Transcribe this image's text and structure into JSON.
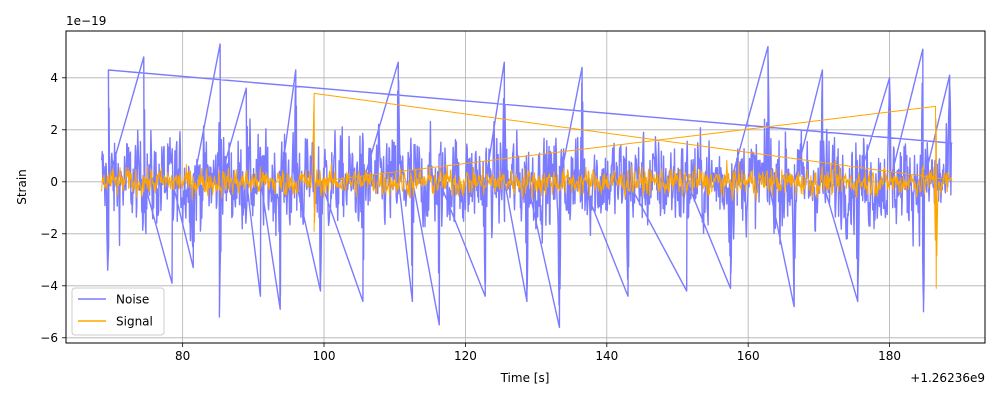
{
  "chart_data": {
    "type": "line",
    "title": "",
    "xlabel": "Time [s]",
    "ylabel": "Strain",
    "x_offset_label": "+1.26236e9",
    "y_scale_label": "1e−19",
    "xlim": [
      63.5,
      193.5
    ],
    "ylim": [
      -6.2,
      5.8
    ],
    "x_ticks": [
      80,
      100,
      120,
      140,
      160,
      180
    ],
    "y_ticks": [
      -6,
      -4,
      -2,
      0,
      2,
      4
    ],
    "x_tick_labels": [
      "80",
      "100",
      "120",
      "140",
      "160",
      "180"
    ],
    "y_tick_labels": [
      "−6",
      "−4",
      "−2",
      "0",
      "2",
      "4"
    ],
    "grid": true,
    "legend_position": "lower-left",
    "series": [
      {
        "name": "Noise",
        "color": "#7b7bff",
        "x_range": [
          68.5,
          188.8
        ],
        "typical_amplitude": 2.5,
        "peaks": [
          {
            "x": 69.5,
            "y": 4.3
          },
          {
            "x": 69.4,
            "y": -3.4
          },
          {
            "x": 74.5,
            "y": 4.8
          },
          {
            "x": 78.5,
            "y": -3.9
          },
          {
            "x": 81.5,
            "y": -3.3
          },
          {
            "x": 85.3,
            "y": 5.3
          },
          {
            "x": 85.2,
            "y": -5.2
          },
          {
            "x": 89.0,
            "y": 3.6
          },
          {
            "x": 91.0,
            "y": -4.4
          },
          {
            "x": 93.8,
            "y": -4.9
          },
          {
            "x": 96.0,
            "y": 4.3
          },
          {
            "x": 99.5,
            "y": -4.2
          },
          {
            "x": 105.5,
            "y": -4.6
          },
          {
            "x": 110.5,
            "y": 4.6
          },
          {
            "x": 112.5,
            "y": -4.6
          },
          {
            "x": 116.3,
            "y": -5.5
          },
          {
            "x": 122.8,
            "y": -4.4
          },
          {
            "x": 125.5,
            "y": 4.6
          },
          {
            "x": 128.7,
            "y": -4.6
          },
          {
            "x": 133.3,
            "y": -5.6
          },
          {
            "x": 136.5,
            "y": 4.4
          },
          {
            "x": 143.0,
            "y": -4.4
          },
          {
            "x": 151.3,
            "y": -4.2
          },
          {
            "x": 157.5,
            "y": -4.1
          },
          {
            "x": 162.8,
            "y": 5.2
          },
          {
            "x": 166.5,
            "y": -4.8
          },
          {
            "x": 170.5,
            "y": 4.3
          },
          {
            "x": 175.5,
            "y": -4.6
          },
          {
            "x": 180.0,
            "y": 4.0
          },
          {
            "x": 184.7,
            "y": 5.1
          },
          {
            "x": 184.8,
            "y": -5.0
          },
          {
            "x": 188.5,
            "y": 4.1
          }
        ]
      },
      {
        "name": "Signal",
        "color": "#ffa500",
        "x_range": [
          68.5,
          188.8
        ],
        "typical_amplitude": 0.75,
        "peaks": [
          {
            "x": 98.6,
            "y": 3.4
          },
          {
            "x": 98.6,
            "y": -1.9
          },
          {
            "x": 186.5,
            "y": 2.9
          },
          {
            "x": 186.6,
            "y": -4.1
          }
        ]
      }
    ]
  }
}
